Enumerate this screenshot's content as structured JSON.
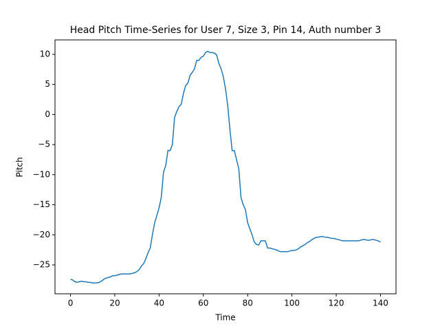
{
  "chart_data": {
    "type": "line",
    "title": "Head Pitch Time-Series for User 7, Size 3, Pin 14, Auth number 3",
    "x_label": "Time",
    "y_label": "Pitch",
    "x": [
      0,
      1,
      2,
      3,
      4,
      5,
      6,
      7,
      8,
      9,
      10,
      11,
      12,
      13,
      14,
      15,
      16,
      17,
      18,
      19,
      20,
      21,
      22,
      23,
      24,
      25,
      26,
      27,
      28,
      29,
      30,
      31,
      32,
      33,
      34,
      35,
      36,
      37,
      38,
      39,
      40,
      41,
      42,
      43,
      44,
      45,
      46,
      47,
      48,
      49,
      50,
      51,
      52,
      53,
      54,
      55,
      56,
      57,
      58,
      59,
      60,
      61,
      62,
      63,
      64,
      65,
      66,
      67,
      68,
      69,
      70,
      71,
      72,
      73,
      74,
      75,
      76,
      77,
      78,
      79,
      80,
      81,
      82,
      83,
      84,
      85,
      86,
      87,
      88,
      89,
      90,
      91,
      92,
      93,
      94,
      95,
      96,
      97,
      98,
      99,
      100,
      101,
      102,
      103,
      104,
      105,
      106,
      107,
      108,
      109,
      110,
      111,
      112,
      113,
      114,
      115,
      116,
      117,
      118,
      119,
      120,
      121,
      122,
      123,
      124,
      125,
      126,
      127,
      128,
      129,
      130,
      131,
      132,
      133,
      134,
      135,
      136,
      137,
      138,
      139,
      140
    ],
    "series": [
      {
        "color": "#1f77b4",
        "values": [
          -27.4,
          -27.5,
          -27.8,
          -27.9,
          -27.8,
          -27.7,
          -27.8,
          -27.8,
          -27.9,
          -27.9,
          -28,
          -28,
          -28,
          -27.9,
          -27.7,
          -27.4,
          -27.2,
          -27.1,
          -27,
          -26.8,
          -26.8,
          -26.7,
          -26.6,
          -26.5,
          -26.5,
          -26.5,
          -26.5,
          -26.5,
          -26.4,
          -26.3,
          -26.1,
          -25.8,
          -25.2,
          -24.8,
          -24,
          -23,
          -22.2,
          -20,
          -18,
          -16.8,
          -15.5,
          -13.8,
          -9.6,
          -8.5,
          -6,
          -6,
          -5,
          -0.5,
          0.5,
          1.3,
          1.7,
          3.5,
          4.8,
          5.2,
          6.5,
          7,
          7.6,
          9,
          9,
          9.5,
          9.7,
          10.3,
          10.5,
          10.3,
          10.3,
          10.2,
          9.9,
          8.5,
          7.6,
          6.3,
          4.3,
          1.5,
          -2.5,
          -6,
          -6,
          -7.5,
          -9,
          -13.8,
          -15,
          -15.8,
          -18,
          -19,
          -20,
          -21.2,
          -21.6,
          -21.7,
          -21,
          -21,
          -21,
          -22.2,
          -22.2,
          -22.3,
          -22.4,
          -22.5,
          -22.7,
          -22.8,
          -22.8,
          -22.8,
          -22.8,
          -22.7,
          -22.6,
          -22.6,
          -22.5,
          -22.3,
          -22,
          -21.8,
          -21.6,
          -21.3,
          -21.1,
          -20.8,
          -20.6,
          -20.4,
          -20.4,
          -20.3,
          -20.3,
          -20.4,
          -20.4,
          -20.5,
          -20.6,
          -20.6,
          -20.7,
          -20.8,
          -20.9,
          -21,
          -21,
          -21,
          -21,
          -21,
          -21,
          -21,
          -21,
          -20.9,
          -20.8,
          -20.8,
          -20.9,
          -20.9,
          -20.8,
          -20.8,
          -20.9,
          -21,
          -21.2
        ]
      }
    ],
    "xlim": [
      -7,
      147
    ],
    "ylim": [
      -29.8,
      12.4
    ],
    "xticks": [
      0,
      20,
      40,
      60,
      80,
      100,
      120,
      140
    ],
    "yticks": [
      {
        "value": -25,
        "label": "−25"
      },
      {
        "value": -20,
        "label": "−20"
      },
      {
        "value": -15,
        "label": "−15"
      },
      {
        "value": -10,
        "label": "−10"
      },
      {
        "value": -5,
        "label": "−5"
      },
      0,
      5,
      10
    ]
  }
}
